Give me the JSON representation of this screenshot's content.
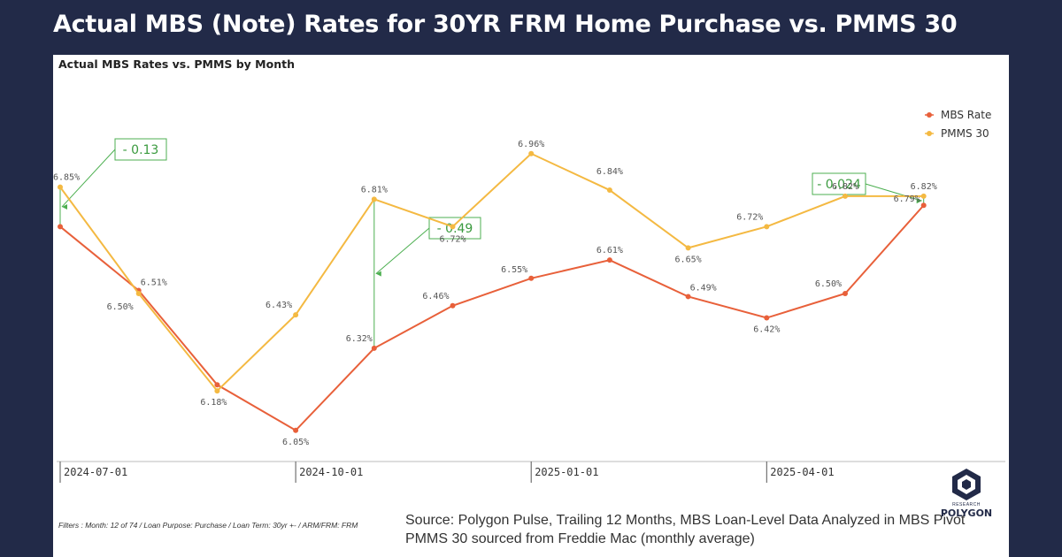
{
  "headline": "Actual MBS (Note) Rates for 30YR FRM Home Purchase vs. PMMS 30",
  "chart_data": {
    "type": "line",
    "title": "Actual MBS Rates vs. PMMS by Month",
    "x_tick_labels": [
      "2024-07-01",
      "2024-10-01",
      "2025-01-01",
      "2025-04-01"
    ],
    "x_tick_index": [
      0,
      3,
      6,
      9
    ],
    "series": [
      {
        "name": "MBS Rate",
        "color": "#e8603a",
        "values": [
          6.72,
          6.51,
          6.2,
          6.05,
          6.32,
          6.46,
          6.55,
          6.61,
          6.49,
          6.42,
          6.5,
          6.79
        ],
        "labels": [
          "",
          "6.51%",
          "",
          "6.05%",
          "6.32%",
          "6.46%",
          "6.55%",
          "6.61%",
          "6.49%",
          "6.42%",
          "6.50%",
          "6.79%"
        ]
      },
      {
        "name": "PMMS 30",
        "color": "#f4b942",
        "values": [
          6.85,
          6.5,
          6.18,
          6.43,
          6.81,
          6.72,
          6.96,
          6.84,
          6.65,
          6.72,
          6.82,
          6.82
        ],
        "labels": [
          "6.85%",
          "6.50%",
          "6.18%",
          "6.43%",
          "6.81%",
          "6.72%",
          "6.96%",
          "6.84%",
          "6.65%",
          "6.72%",
          "6.82%",
          "6.82%"
        ]
      }
    ],
    "ylim": [
      6.0,
      7.0
    ],
    "grid": false,
    "legend": "top-right",
    "annotations": [
      {
        "text": "- 0.13",
        "index": 0
      },
      {
        "text": "- 0.49",
        "index": 4
      },
      {
        "text": "- 0.024",
        "index": 11
      }
    ]
  },
  "filters": "Filters : Month: 12 of 74 / Loan Purpose: Purchase / Loan Term: 30yr +- / ARM/FRM: FRM",
  "source_line1": "Source: Polygon Pulse, Trailing 12 Months, MBS Loan-Level Data Analyzed in MBS Pivot",
  "source_line2": "PMMS 30 sourced from Freddie Mac (monthly average)",
  "logo": {
    "name": "POLYGON",
    "sub": "RESEARCH"
  }
}
